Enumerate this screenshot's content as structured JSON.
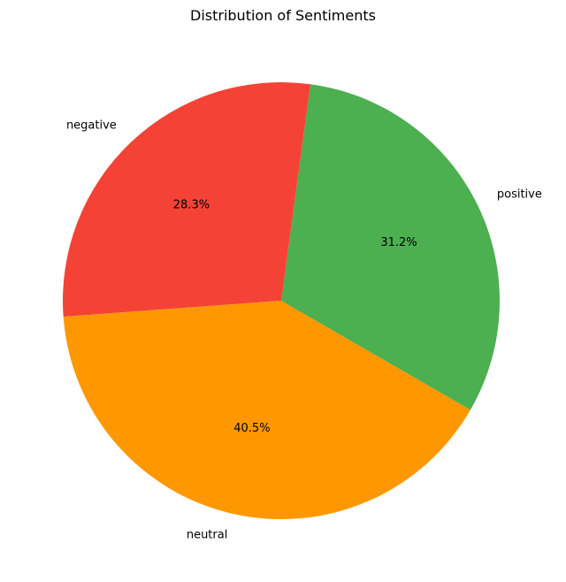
{
  "chart_data": {
    "type": "pie",
    "title": "Distribution of Sentiments",
    "slices": [
      {
        "label": "positive",
        "value": 31.2,
        "percent_label": "31.2%",
        "color": "#4caf50"
      },
      {
        "label": "negative",
        "value": 28.3,
        "percent_label": "28.3%",
        "color": "#f44336"
      },
      {
        "label": "neutral",
        "value": 40.5,
        "percent_label": "40.5%",
        "color": "#ff9800"
      }
    ],
    "start_angle_deg": -30,
    "direction": "counterclockwise",
    "legend": "none"
  }
}
